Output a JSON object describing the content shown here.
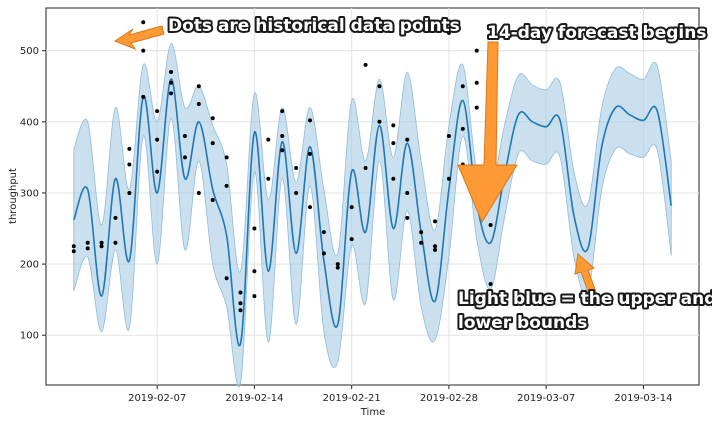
{
  "chart_data": {
    "type": "line",
    "xlabel": "Time",
    "ylabel": "throughput",
    "x_ticks": [
      "2019-02-07",
      "2019-02-14",
      "2019-02-21",
      "2019-02-28",
      "2019-03-07",
      "2019-03-14"
    ],
    "y_ticks": [
      100,
      200,
      300,
      400,
      500
    ],
    "xlim": [
      "2019-01-30",
      "2019-03-18"
    ],
    "ylim": [
      30,
      560
    ],
    "grid": true,
    "colors": {
      "forecast_line": "#1f77b4",
      "uncertainty_band": "#a6cbe3",
      "history_points": "#000000",
      "annotation_arrow": "#ff9933"
    },
    "forecast": [
      [
        "2019-02-01",
        262
      ],
      [
        "2019-02-02",
        305
      ],
      [
        "2019-02-03",
        155
      ],
      [
        "2019-02-04",
        320
      ],
      [
        "2019-02-05",
        205
      ],
      [
        "2019-02-06",
        435
      ],
      [
        "2019-02-07",
        300
      ],
      [
        "2019-02-08",
        460
      ],
      [
        "2019-02-09",
        320
      ],
      [
        "2019-02-10",
        400
      ],
      [
        "2019-02-11",
        305
      ],
      [
        "2019-02-12",
        240
      ],
      [
        "2019-02-13",
        88
      ],
      [
        "2019-02-14",
        385
      ],
      [
        "2019-02-15",
        190
      ],
      [
        "2019-02-16",
        372
      ],
      [
        "2019-02-17",
        215
      ],
      [
        "2019-02-18",
        365
      ],
      [
        "2019-02-19",
        205
      ],
      [
        "2019-02-20",
        115
      ],
      [
        "2019-02-21",
        330
      ],
      [
        "2019-02-22",
        245
      ],
      [
        "2019-02-23",
        395
      ],
      [
        "2019-02-24",
        250
      ],
      [
        "2019-02-25",
        370
      ],
      [
        "2019-02-26",
        245
      ],
      [
        "2019-02-27",
        148
      ],
      [
        "2019-02-28",
        305
      ],
      [
        "2019-03-01",
        430
      ],
      [
        "2019-03-02",
        285
      ],
      [
        "2019-03-03",
        230
      ],
      [
        "2019-03-04",
        325
      ],
      [
        "2019-03-05",
        410
      ],
      [
        "2019-03-06",
        400
      ],
      [
        "2019-03-07",
        393
      ],
      [
        "2019-03-08",
        402
      ],
      [
        "2019-03-09",
        268
      ],
      [
        "2019-03-10",
        222
      ],
      [
        "2019-03-11",
        365
      ],
      [
        "2019-03-12",
        420
      ],
      [
        "2019-03-13",
        410
      ],
      [
        "2019-03-14",
        402
      ],
      [
        "2019-03-15",
        415
      ],
      [
        "2019-03-16",
        282
      ]
    ],
    "upper_band": [
      [
        "2019-02-01",
        362
      ],
      [
        "2019-02-02",
        400
      ],
      [
        "2019-02-03",
        255
      ],
      [
        "2019-02-04",
        420
      ],
      [
        "2019-02-05",
        305
      ],
      [
        "2019-02-06",
        480
      ],
      [
        "2019-02-07",
        400
      ],
      [
        "2019-02-08",
        510
      ],
      [
        "2019-02-09",
        420
      ],
      [
        "2019-02-10",
        450
      ],
      [
        "2019-02-11",
        395
      ],
      [
        "2019-02-12",
        340
      ],
      [
        "2019-02-13",
        190
      ],
      [
        "2019-02-14",
        440
      ],
      [
        "2019-02-15",
        290
      ],
      [
        "2019-02-16",
        420
      ],
      [
        "2019-02-17",
        315
      ],
      [
        "2019-02-18",
        420
      ],
      [
        "2019-02-19",
        305
      ],
      [
        "2019-02-20",
        215
      ],
      [
        "2019-02-21",
        430
      ],
      [
        "2019-02-22",
        345
      ],
      [
        "2019-02-23",
        460
      ],
      [
        "2019-02-24",
        350
      ],
      [
        "2019-02-25",
        470
      ],
      [
        "2019-02-26",
        345
      ],
      [
        "2019-02-27",
        248
      ],
      [
        "2019-02-28",
        395
      ],
      [
        "2019-03-01",
        480
      ],
      [
        "2019-03-02",
        330
      ],
      [
        "2019-03-03",
        300
      ],
      [
        "2019-03-04",
        395
      ],
      [
        "2019-03-05",
        465
      ],
      [
        "2019-03-06",
        452
      ],
      [
        "2019-03-07",
        445
      ],
      [
        "2019-03-08",
        455
      ],
      [
        "2019-03-09",
        330
      ],
      [
        "2019-03-10",
        285
      ],
      [
        "2019-03-11",
        420
      ],
      [
        "2019-03-12",
        475
      ],
      [
        "2019-03-13",
        468
      ],
      [
        "2019-03-14",
        460
      ],
      [
        "2019-03-15",
        478
      ],
      [
        "2019-03-16",
        345
      ]
    ],
    "lower_band": [
      [
        "2019-02-01",
        162
      ],
      [
        "2019-02-02",
        210
      ],
      [
        "2019-02-03",
        105
      ],
      [
        "2019-02-04",
        220
      ],
      [
        "2019-02-05",
        110
      ],
      [
        "2019-02-06",
        380
      ],
      [
        "2019-02-07",
        200
      ],
      [
        "2019-02-08",
        405
      ],
      [
        "2019-02-09",
        220
      ],
      [
        "2019-02-10",
        345
      ],
      [
        "2019-02-11",
        200
      ],
      [
        "2019-02-12",
        140
      ],
      [
        "2019-02-13",
        33
      ],
      [
        "2019-02-14",
        330
      ],
      [
        "2019-02-15",
        90
      ],
      [
        "2019-02-16",
        320
      ],
      [
        "2019-02-17",
        115
      ],
      [
        "2019-02-18",
        310
      ],
      [
        "2019-02-19",
        105
      ],
      [
        "2019-02-20",
        62
      ],
      [
        "2019-02-21",
        225
      ],
      [
        "2019-02-22",
        145
      ],
      [
        "2019-02-23",
        345
      ],
      [
        "2019-02-24",
        150
      ],
      [
        "2019-02-25",
        275
      ],
      [
        "2019-02-26",
        140
      ],
      [
        "2019-02-27",
        93
      ],
      [
        "2019-02-28",
        210
      ],
      [
        "2019-03-01",
        380
      ],
      [
        "2019-03-02",
        235
      ],
      [
        "2019-03-03",
        165
      ],
      [
        "2019-03-04",
        265
      ],
      [
        "2019-03-05",
        355
      ],
      [
        "2019-03-06",
        345
      ],
      [
        "2019-03-07",
        340
      ],
      [
        "2019-03-08",
        350
      ],
      [
        "2019-03-09",
        210
      ],
      [
        "2019-03-10",
        160
      ],
      [
        "2019-03-11",
        305
      ],
      [
        "2019-03-12",
        362
      ],
      [
        "2019-03-13",
        355
      ],
      [
        "2019-03-14",
        350
      ],
      [
        "2019-03-15",
        360
      ],
      [
        "2019-03-16",
        212
      ]
    ],
    "history_points": [
      [
        "2019-02-01",
        225
      ],
      [
        "2019-02-01",
        218
      ],
      [
        "2019-02-02",
        230
      ],
      [
        "2019-02-02",
        222
      ],
      [
        "2019-02-03",
        225
      ],
      [
        "2019-02-03",
        230
      ],
      [
        "2019-02-04",
        230
      ],
      [
        "2019-02-04",
        265
      ],
      [
        "2019-02-05",
        300
      ],
      [
        "2019-02-05",
        340
      ],
      [
        "2019-02-05",
        362
      ],
      [
        "2019-02-06",
        435
      ],
      [
        "2019-02-06",
        500
      ],
      [
        "2019-02-06",
        540
      ],
      [
        "2019-02-07",
        415
      ],
      [
        "2019-02-07",
        375
      ],
      [
        "2019-02-07",
        330
      ],
      [
        "2019-02-08",
        455
      ],
      [
        "2019-02-08",
        470
      ],
      [
        "2019-02-08",
        440
      ],
      [
        "2019-02-09",
        380
      ],
      [
        "2019-02-09",
        350
      ],
      [
        "2019-02-10",
        450
      ],
      [
        "2019-02-10",
        425
      ],
      [
        "2019-02-10",
        300
      ],
      [
        "2019-02-11",
        370
      ],
      [
        "2019-02-11",
        405
      ],
      [
        "2019-02-11",
        290
      ],
      [
        "2019-02-12",
        350
      ],
      [
        "2019-02-12",
        310
      ],
      [
        "2019-02-12",
        180
      ],
      [
        "2019-02-13",
        160
      ],
      [
        "2019-02-13",
        145
      ],
      [
        "2019-02-13",
        135
      ],
      [
        "2019-02-14",
        155
      ],
      [
        "2019-02-14",
        190
      ],
      [
        "2019-02-14",
        250
      ],
      [
        "2019-02-15",
        375
      ],
      [
        "2019-02-15",
        320
      ],
      [
        "2019-02-16",
        360
      ],
      [
        "2019-02-16",
        415
      ],
      [
        "2019-02-16",
        380
      ],
      [
        "2019-02-17",
        300
      ],
      [
        "2019-02-17",
        335
      ],
      [
        "2019-02-18",
        355
      ],
      [
        "2019-02-18",
        402
      ],
      [
        "2019-02-18",
        280
      ],
      [
        "2019-02-19",
        245
      ],
      [
        "2019-02-19",
        215
      ],
      [
        "2019-02-20",
        200
      ],
      [
        "2019-02-20",
        195
      ],
      [
        "2019-02-21",
        235
      ],
      [
        "2019-02-21",
        280
      ],
      [
        "2019-02-22",
        335
      ],
      [
        "2019-02-22",
        480
      ],
      [
        "2019-02-22",
        540
      ],
      [
        "2019-02-23",
        450
      ],
      [
        "2019-02-23",
        400
      ],
      [
        "2019-02-24",
        370
      ],
      [
        "2019-02-24",
        320
      ],
      [
        "2019-02-24",
        395
      ],
      [
        "2019-02-25",
        375
      ],
      [
        "2019-02-25",
        300
      ],
      [
        "2019-02-25",
        265
      ],
      [
        "2019-02-26",
        245
      ],
      [
        "2019-02-26",
        230
      ],
      [
        "2019-02-27",
        225
      ],
      [
        "2019-02-27",
        220
      ],
      [
        "2019-02-27",
        260
      ],
      [
        "2019-02-28",
        320
      ],
      [
        "2019-02-28",
        380
      ],
      [
        "2019-02-28",
        525
      ],
      [
        "2019-03-01",
        450
      ],
      [
        "2019-03-01",
        390
      ],
      [
        "2019-03-01",
        340
      ],
      [
        "2019-03-02",
        420
      ],
      [
        "2019-03-02",
        455
      ],
      [
        "2019-03-02",
        500
      ],
      [
        "2019-03-03",
        290
      ],
      [
        "2019-03-03",
        255
      ],
      [
        "2019-03-03",
        172
      ]
    ]
  },
  "annotations": {
    "dots": "Dots are historical data points",
    "forecast": "14-day forecast begins",
    "bounds_line1": "Light blue = the upper and",
    "bounds_line2": "lower bounds"
  }
}
